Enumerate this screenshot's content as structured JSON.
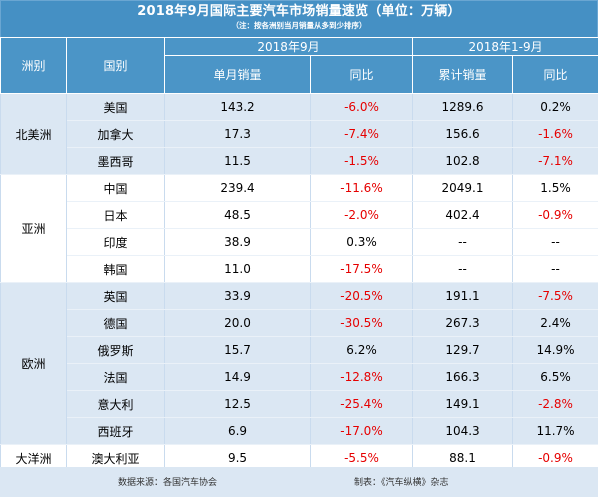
{
  "title": "2018年9月国际主要汽车市场销量速览（单位：万辆）",
  "subtitle": "（注：按各洲别当月销量从多到少排序）",
  "headers": {
    "continent": "洲别",
    "country": "国别",
    "group1": "2018年9月",
    "group2": "2018年1-9月",
    "monthly_sales": "单月销量",
    "yoy1": "同比",
    "cumulative_sales": "累计销量",
    "yoy2": "同比"
  },
  "continents": [
    {
      "name": "北美洲",
      "rows": [
        {
          "country": "美国",
          "monthly": "143.2",
          "yoy1": "-6.0%",
          "cum": "1289.6",
          "yoy2": "0.2%"
        },
        {
          "country": "加拿大",
          "monthly": "17.3",
          "yoy1": "-7.4%",
          "cum": "156.6",
          "yoy2": "-1.6%"
        },
        {
          "country": "墨西哥",
          "monthly": "11.5",
          "yoy1": "-1.5%",
          "cum": "102.8",
          "yoy2": "-7.1%"
        }
      ]
    },
    {
      "name": "亚洲",
      "rows": [
        {
          "country": "中国",
          "monthly": "239.4",
          "yoy1": "-11.6%",
          "cum": "2049.1",
          "yoy2": "1.5%"
        },
        {
          "country": "日本",
          "monthly": "48.5",
          "yoy1": "-2.0%",
          "cum": "402.4",
          "yoy2": "-0.9%"
        },
        {
          "country": "印度",
          "monthly": "38.9",
          "yoy1": "0.3%",
          "cum": "--",
          "yoy2": "--"
        },
        {
          "country": "韩国",
          "monthly": "11.0",
          "yoy1": "-17.5%",
          "cum": "--",
          "yoy2": "--"
        }
      ]
    },
    {
      "name": "欧洲",
      "rows": [
        {
          "country": "英国",
          "monthly": "33.9",
          "yoy1": "-20.5%",
          "cum": "191.1",
          "yoy2": "-7.5%"
        },
        {
          "country": "德国",
          "monthly": "20.0",
          "yoy1": "-30.5%",
          "cum": "267.3",
          "yoy2": "2.4%"
        },
        {
          "country": "俄罗斯",
          "monthly": "15.7",
          "yoy1": "6.2%",
          "cum": "129.7",
          "yoy2": "14.9%"
        },
        {
          "country": "法国",
          "monthly": "14.9",
          "yoy1": "-12.8%",
          "cum": "166.3",
          "yoy2": "6.5%"
        },
        {
          "country": "意大利",
          "monthly": "12.5",
          "yoy1": "-25.4%",
          "cum": "149.1",
          "yoy2": "-2.8%"
        },
        {
          "country": "西班牙",
          "monthly": "6.9",
          "yoy1": "-17.0%",
          "cum": "104.3",
          "yoy2": "11.7%"
        }
      ]
    },
    {
      "name": "大洋洲",
      "rows": [
        {
          "country": "澳大利亚",
          "monthly": "9.5",
          "yoy1": "-5.5%",
          "cum": "88.1",
          "yoy2": "-0.9%"
        }
      ]
    }
  ],
  "footer": {
    "source": "数据来源：各国汽车协会",
    "maker": "制表：《汽车纵横》杂志"
  },
  "colors": {
    "header_bg": "#4b95c7",
    "band_bg": "#dbe7f3",
    "negative": "#e60000"
  }
}
